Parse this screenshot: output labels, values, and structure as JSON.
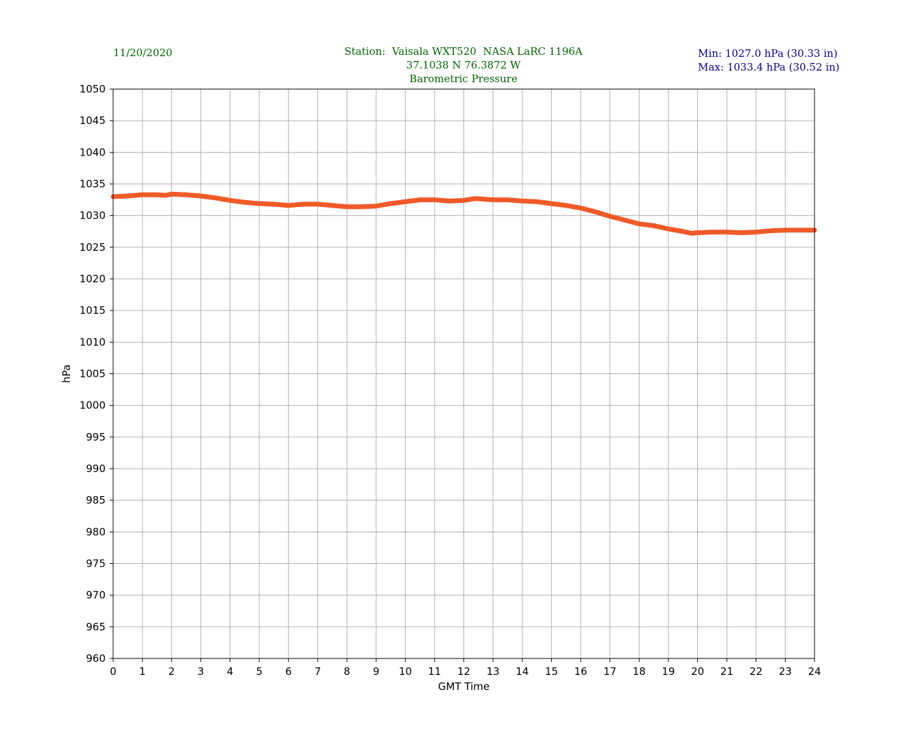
{
  "header": {
    "date": "11/20/2020",
    "station_line": "Station:  Vaisala WXT520  NASA LaRC 1196A",
    "coords_line": "37.1038 N 76.3872 W",
    "title_line": "Barometric Pressure",
    "min_line": "Min: 1027.0 hPa (30.33 in)",
    "max_line": "Max: 1033.4 hPa (30.52 in)"
  },
  "colors": {
    "series": "#f05a28",
    "header_green": "#006400",
    "header_blue": "#00008b",
    "grid": "#b0b0b0"
  },
  "chart_data": {
    "type": "line",
    "title": "Barometric Pressure",
    "xlabel": "GMT Time",
    "ylabel": "hPa",
    "xlim": [
      0,
      24
    ],
    "ylim": [
      960,
      1050
    ],
    "xticks": [
      0,
      1,
      2,
      3,
      4,
      5,
      6,
      7,
      8,
      9,
      10,
      11,
      12,
      13,
      14,
      15,
      16,
      17,
      18,
      19,
      20,
      21,
      22,
      23,
      24
    ],
    "yticks": [
      960,
      965,
      970,
      975,
      980,
      985,
      990,
      995,
      1000,
      1005,
      1010,
      1015,
      1020,
      1025,
      1030,
      1035,
      1040,
      1045,
      1050
    ],
    "grid": true,
    "series": [
      {
        "x": [
          0,
          0.5,
          1,
          1.5,
          1.8,
          2,
          2.5,
          3,
          3.5,
          4,
          4.5,
          5,
          5.5,
          6,
          6.5,
          7,
          7.5,
          8,
          8.5,
          9,
          9.5,
          10,
          10.5,
          11,
          11.5,
          12,
          12.4,
          13,
          13.5,
          14,
          14.5,
          15,
          15.5,
          16,
          16.5,
          17,
          17.5,
          18,
          18.5,
          19,
          19.5,
          19.8,
          20,
          20.5,
          21,
          21.5,
          22,
          22.5,
          23,
          23.5,
          24
        ],
        "y": [
          1033.0,
          1033.1,
          1033.3,
          1033.3,
          1033.2,
          1033.4,
          1033.3,
          1033.1,
          1032.8,
          1032.4,
          1032.1,
          1031.9,
          1031.8,
          1031.6,
          1031.8,
          1031.8,
          1031.6,
          1031.4,
          1031.4,
          1031.5,
          1031.9,
          1032.2,
          1032.5,
          1032.5,
          1032.3,
          1032.4,
          1032.7,
          1032.5,
          1032.5,
          1032.3,
          1032.2,
          1031.9,
          1031.6,
          1031.2,
          1030.6,
          1029.9,
          1029.3,
          1028.7,
          1028.4,
          1027.9,
          1027.5,
          1027.2,
          1027.3,
          1027.4,
          1027.4,
          1027.3,
          1027.4,
          1027.6,
          1027.7,
          1027.7,
          1027.7
        ]
      }
    ]
  }
}
